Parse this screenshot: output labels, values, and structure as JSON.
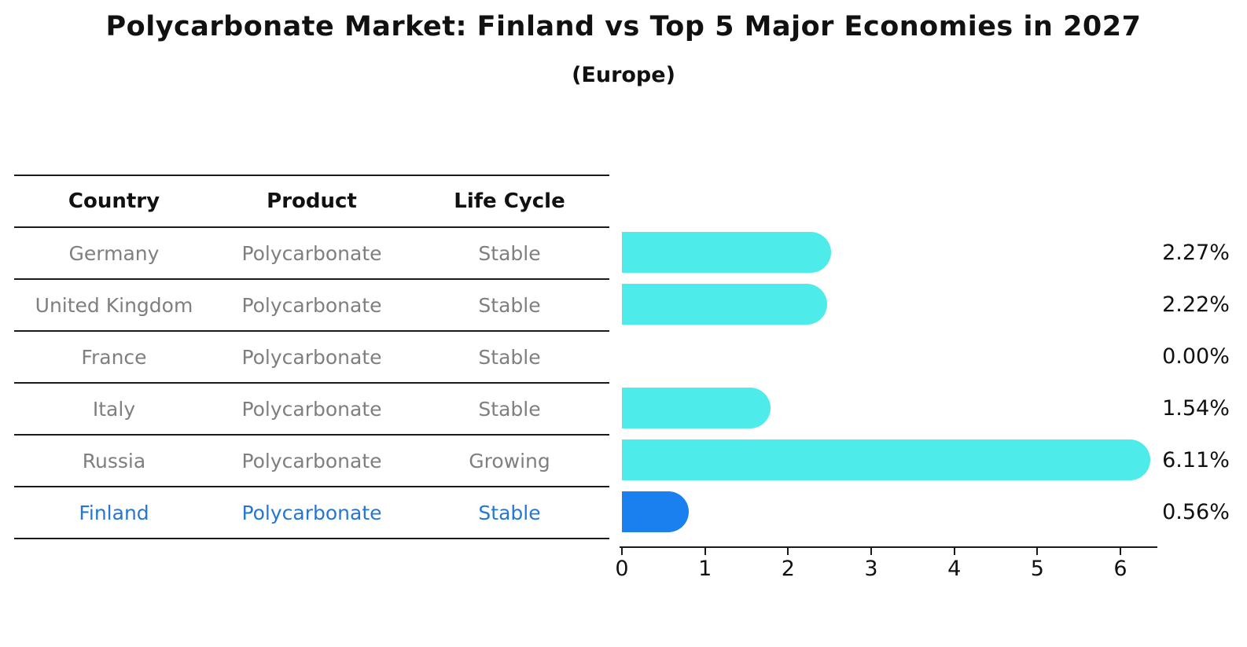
{
  "title": "Polycarbonate Market: Finland vs Top 5 Major Economies in 2027",
  "subtitle": "(Europe)",
  "table": {
    "headers": [
      "Country",
      "Product",
      "Life Cycle"
    ],
    "rows": [
      {
        "country": "Germany",
        "product": "Polycarbonate",
        "life_cycle": "Stable"
      },
      {
        "country": "United Kingdom",
        "product": "Polycarbonate",
        "life_cycle": "Stable"
      },
      {
        "country": "France",
        "product": "Polycarbonate",
        "life_cycle": "Stable"
      },
      {
        "country": "Italy",
        "product": "Polycarbonate",
        "life_cycle": "Stable"
      },
      {
        "country": "Russia",
        "product": "Polycarbonate",
        "life_cycle": "Growing"
      },
      {
        "country": "Finland",
        "product": "Polycarbonate",
        "life_cycle": "Stable"
      }
    ]
  },
  "chart_data": {
    "type": "bar",
    "orientation": "horizontal",
    "title": "Polycarbonate Market: Finland vs Top 5 Major Economies in 2027",
    "subtitle": "(Europe)",
    "categories": [
      "Germany",
      "United Kingdom",
      "France",
      "Italy",
      "Russia",
      "Finland"
    ],
    "values": [
      2.27,
      2.22,
      0.0,
      1.54,
      6.11,
      0.56
    ],
    "value_labels": [
      "2.27%",
      "2.22%",
      "0.00%",
      "1.54%",
      "6.11%",
      "0.56%"
    ],
    "x_ticks": [
      0,
      1,
      2,
      3,
      4,
      5,
      6
    ],
    "x_tick_labels": [
      "0",
      "1",
      "2",
      "3",
      "4",
      "5",
      "6"
    ],
    "xlim": [
      0,
      6.44
    ],
    "grid": false,
    "legend": false,
    "bar_color": "#4debe9",
    "highlight_color": "#1a80f0",
    "highlight_index": 5,
    "highlight_style": "dotted-border",
    "highlight_text_color": "#2577d0"
  }
}
